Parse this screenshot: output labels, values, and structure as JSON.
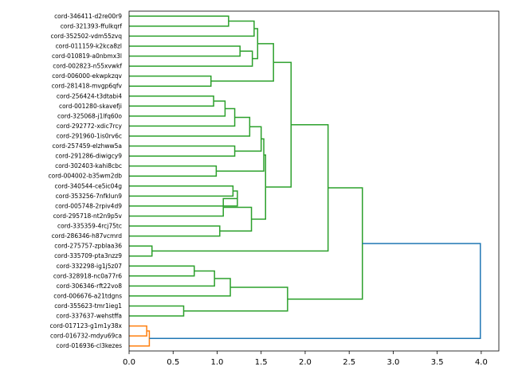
{
  "chart_data": {
    "type": "dendrogram",
    "orientation": "right",
    "xlim": [
      0,
      4.2
    ],
    "xticks": [
      "0.0",
      "0.5",
      "1.0",
      "1.5",
      "2.0",
      "2.5",
      "3.0",
      "3.5",
      "4.0"
    ],
    "tick_values": [
      0,
      0.5,
      1.0,
      1.5,
      2.0,
      2.5,
      3.0,
      3.5,
      4.0
    ],
    "colors": {
      "orange": "#ff7f0e",
      "green": "#2ca02c",
      "blue": "#1f77b4"
    },
    "leaves": [
      "cord-346411-d2re00r9",
      "cord-321393-ffulkqrf",
      "cord-352502-vdm55zvq",
      "cord-011159-k2kca8zl",
      "cord-010819-a0nbmx3l",
      "cord-002823-n55xvwkf",
      "cord-006000-ekwpkzqv",
      "cord-281418-mvgp6qfv",
      "cord-256424-t3dtabi4",
      "cord-001280-skavefji",
      "cord-325068-j1lfq60o",
      "cord-292772-xdic7rcy",
      "cord-291960-1is0rv6c",
      "cord-257459-elzhww5a",
      "cord-291286-diwigcy9",
      "cord-302403-kahi8cbc",
      "cord-004002-b35wm2db",
      "cord-340544-ce5ic04g",
      "cord-353256-7nfklun9",
      "cord-005748-2rpiv4d9",
      "cord-295718-nt2n9p5v",
      "cord-335359-4rcj75tc",
      "cord-286346-h87vcmrd",
      "cord-275757-zpblaa36",
      "cord-335709-pta3nzz9",
      "cord-332298-ig1j5z07",
      "cord-328918-nc0a77r6",
      "cord-306346-rft22vo8",
      "cord-006676-a21tdgns",
      "cord-355623-tmr1ieg1",
      "cord-337637-wehstffa",
      "cord-017123-g1m1y38x",
      "cord-016732-mdyu69ca",
      "cord-016936-cl3kezes"
    ],
    "merges": [
      {
        "a": "L0",
        "b": "L1",
        "h": 1.13,
        "color": "green"
      },
      {
        "a": "N0",
        "b": "L2",
        "h": 1.42,
        "color": "green"
      },
      {
        "a": "L3",
        "b": "L4",
        "h": 1.26,
        "color": "green"
      },
      {
        "a": "N2",
        "b": "L5",
        "h": 1.4,
        "color": "green"
      },
      {
        "a": "N1",
        "b": "N3",
        "h": 1.46,
        "color": "green"
      },
      {
        "a": "L6",
        "b": "L7",
        "h": 0.93,
        "color": "green"
      },
      {
        "a": "N4",
        "b": "N5",
        "h": 1.64,
        "color": "green"
      },
      {
        "a": "L8",
        "b": "L9",
        "h": 0.96,
        "color": "green"
      },
      {
        "a": "N7",
        "b": "L10",
        "h": 1.09,
        "color": "green"
      },
      {
        "a": "N8",
        "b": "L11",
        "h": 1.2,
        "color": "green"
      },
      {
        "a": "N9",
        "b": "L12",
        "h": 1.37,
        "color": "green"
      },
      {
        "a": "L13",
        "b": "L14",
        "h": 1.2,
        "color": "green"
      },
      {
        "a": "N10",
        "b": "N11",
        "h": 1.5,
        "color": "green"
      },
      {
        "a": "L15",
        "b": "L16",
        "h": 0.99,
        "color": "green"
      },
      {
        "a": "N12",
        "b": "N13",
        "h": 1.53,
        "color": "green"
      },
      {
        "a": "L17",
        "b": "L18",
        "h": 1.18,
        "color": "green"
      },
      {
        "a": "N15",
        "b": "L19",
        "h": 1.23,
        "color": "green"
      },
      {
        "a": "N16",
        "b": "L20",
        "h": 1.07,
        "color": "green"
      },
      {
        "a": "L21",
        "b": "L22",
        "h": 1.03,
        "color": "green"
      },
      {
        "a": "N17",
        "b": "N18",
        "h": 1.39,
        "color": "green"
      },
      {
        "a": "N14",
        "b": "N19",
        "h": 1.55,
        "color": "green"
      },
      {
        "a": "N6",
        "b": "N20",
        "h": 1.84,
        "color": "green"
      },
      {
        "a": "L23",
        "b": "L24",
        "h": 0.26,
        "color": "green"
      },
      {
        "a": "N21",
        "b": "N22",
        "h": 2.26,
        "color": "green"
      },
      {
        "a": "L25",
        "b": "L26",
        "h": 0.74,
        "color": "green"
      },
      {
        "a": "N24",
        "b": "L27",
        "h": 0.97,
        "color": "green"
      },
      {
        "a": "N25",
        "b": "L28",
        "h": 1.15,
        "color": "green"
      },
      {
        "a": "L29",
        "b": "L30",
        "h": 0.62,
        "color": "green"
      },
      {
        "a": "N26",
        "b": "N27",
        "h": 1.8,
        "color": "green"
      },
      {
        "a": "N23",
        "b": "N28",
        "h": 2.65,
        "color": "green"
      },
      {
        "a": "L31",
        "b": "L32",
        "h": 0.2,
        "color": "orange"
      },
      {
        "a": "N30",
        "b": "L33",
        "h": 0.23,
        "color": "orange"
      },
      {
        "a": "N29",
        "b": "N31",
        "h": 3.99,
        "color": "blue"
      }
    ]
  }
}
